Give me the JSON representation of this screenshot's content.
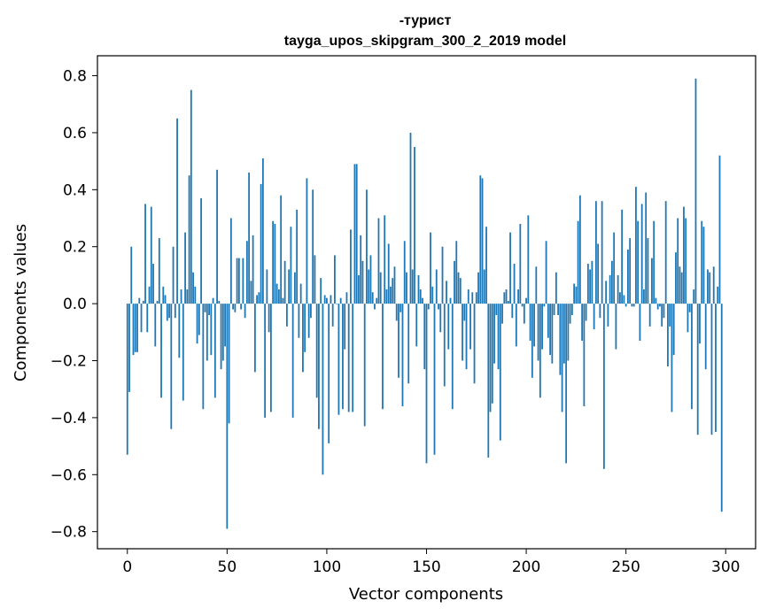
{
  "chart_data": {
    "type": "bar",
    "title_line1": "-турист",
    "title_line2": "tayga_upos_skipgram_300_2_2019 model",
    "xlabel": "Vector components",
    "ylabel": "Components values",
    "xlim": [
      -15,
      315
    ],
    "ylim": [
      -0.86,
      0.87
    ],
    "xticks": [
      0,
      50,
      100,
      150,
      200,
      250,
      300
    ],
    "yticks": [
      -0.8,
      -0.6,
      -0.4,
      -0.2,
      0.0,
      0.2,
      0.4,
      0.6,
      0.8
    ],
    "ytick_labels": [
      "−0.8",
      "−0.6",
      "−0.4",
      "−0.2",
      "0.0",
      "0.2",
      "0.4",
      "0.6",
      "0.8"
    ],
    "bar_color": "#1f77b4",
    "x": "0..299",
    "values": [
      -0.53,
      -0.31,
      0.2,
      -0.18,
      -0.17,
      -0.17,
      0.02,
      -0.1,
      0.01,
      0.35,
      -0.1,
      0.06,
      0.34,
      0.14,
      -0.15,
      0.01,
      0.23,
      -0.33,
      0.06,
      0.03,
      -0.06,
      -0.05,
      -0.44,
      0.2,
      -0.05,
      0.65,
      -0.19,
      0.05,
      -0.34,
      0.25,
      0.05,
      0.45,
      0.75,
      0.11,
      0.06,
      -0.14,
      -0.11,
      0.37,
      -0.37,
      -0.03,
      -0.2,
      -0.04,
      -0.18,
      0.02,
      -0.33,
      0.47,
      0.01,
      -0.23,
      -0.2,
      -0.15,
      -0.79,
      -0.42,
      0.3,
      -0.02,
      -0.03,
      0.16,
      0.16,
      -0.02,
      0.16,
      -0.05,
      0.22,
      0.46,
      0.08,
      0.24,
      -0.24,
      0.03,
      0.04,
      0.42,
      0.51,
      -0.4,
      0.12,
      -0.1,
      -0.38,
      0.29,
      0.28,
      0.07,
      0.05,
      0.38,
      0.02,
      0.15,
      -0.08,
      0.12,
      0.27,
      -0.4,
      0.11,
      0.33,
      -0.12,
      0.07,
      -0.24,
      -0.17,
      0.44,
      -0.12,
      -0.05,
      0.4,
      0.17,
      -0.33,
      -0.44,
      0.09,
      -0.6,
      0.03,
      0.02,
      -0.49,
      0.03,
      -0.08,
      0.17,
      0.0,
      -0.39,
      0.02,
      -0.37,
      -0.16,
      0.04,
      -0.38,
      0.26,
      -0.38,
      0.49,
      0.49,
      0.1,
      0.24,
      0.15,
      -0.43,
      0.4,
      0.12,
      0.17,
      0.04,
      -0.02,
      0.02,
      0.3,
      0.11,
      -0.37,
      0.31,
      0.05,
      0.21,
      0.06,
      0.09,
      0.13,
      -0.06,
      -0.26,
      -0.03,
      -0.36,
      0.22,
      0.11,
      -0.28,
      0.6,
      0.12,
      0.55,
      -0.15,
      0.1,
      0.05,
      0.02,
      -0.23,
      -0.56,
      -0.02,
      0.25,
      0.06,
      -0.53,
      0.12,
      -0.02,
      -0.1,
      0.2,
      -0.29,
      0.08,
      -0.16,
      0.02,
      -0.37,
      0.15,
      0.22,
      0.11,
      0.09,
      -0.2,
      -0.06,
      -0.23,
      0.05,
      -0.16,
      0.04,
      -0.28,
      0.04,
      0.11,
      0.45,
      0.44,
      0.12,
      0.27,
      -0.54,
      -0.38,
      -0.35,
      -0.21,
      -0.04,
      -0.23,
      -0.48,
      -0.07,
      0.04,
      0.05,
      0.01,
      0.25,
      -0.05,
      0.14,
      -0.15,
      0.05,
      0.28,
      -0.01,
      -0.07,
      0.02,
      0.31,
      -0.13,
      -0.26,
      -0.15,
      0.13,
      -0.2,
      -0.33,
      -0.16,
      -0.01,
      0.22,
      -0.12,
      -0.18,
      -0.21,
      -0.04,
      0.11,
      -0.04,
      -0.25,
      -0.38,
      -0.21,
      -0.56,
      -0.2,
      -0.07,
      -0.04,
      0.07,
      0.06,
      0.29,
      0.38,
      -0.13,
      -0.36,
      -0.06,
      0.14,
      0.12,
      0.15,
      -0.09,
      0.36,
      0.21,
      -0.05,
      0.36,
      -0.58,
      0.08,
      -0.08,
      0.1,
      0.15,
      0.25,
      -0.16,
      0.1,
      0.04,
      0.33,
      0.03,
      -0.01,
      0.19,
      0.23,
      -0.01,
      -0.01,
      0.41,
      0.29,
      -0.13,
      0.35,
      0.05,
      0.39,
      0.23,
      -0.08,
      0.16,
      0.29,
      0.02,
      -0.02,
      -0.01,
      -0.08,
      -0.05,
      0.36,
      -0.22,
      -0.08,
      -0.38,
      -0.18,
      0.18,
      0.3,
      0.13,
      0.11,
      0.34,
      0.3,
      -0.1,
      -0.03,
      -0.37,
      0.05,
      0.79,
      -0.46,
      -0.14,
      0.29,
      0.27,
      -0.23,
      0.12,
      0.11,
      -0.46,
      0.13,
      -0.45,
      0.06,
      0.52,
      -0.73
    ]
  }
}
